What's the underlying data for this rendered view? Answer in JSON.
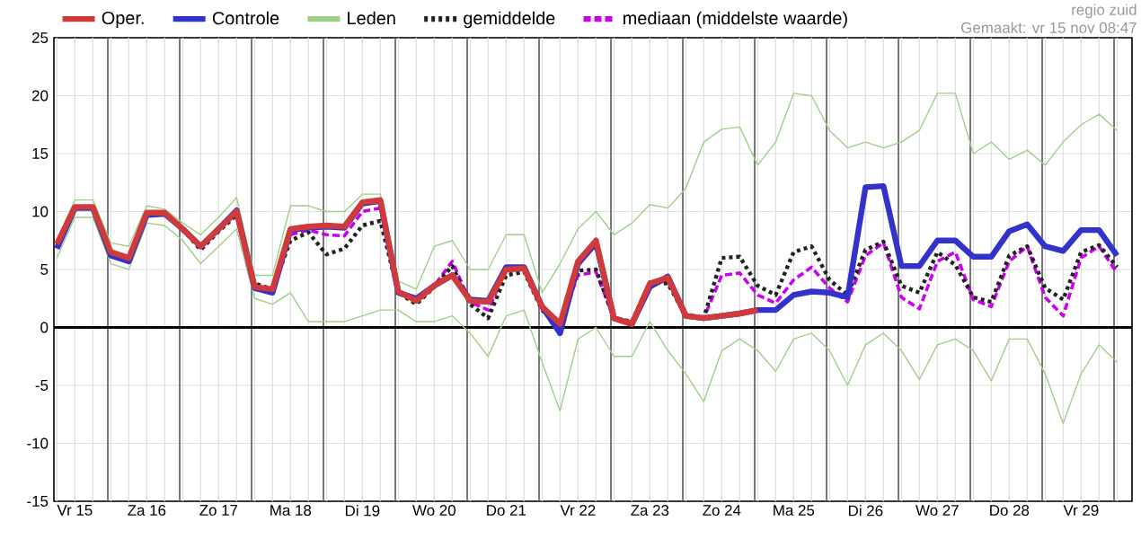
{
  "chart_data": {
    "type": "line",
    "annotations": [
      "regio zuid",
      "Gemaakt: vr 15 nov 08:47"
    ],
    "categories": [
      null,
      "Vr 15",
      null,
      null,
      null,
      "Za 16",
      null,
      null,
      null,
      "Zo 17",
      null,
      null,
      null,
      "Ma 18",
      null,
      null,
      null,
      "Di 19",
      null,
      null,
      null,
      "Wo 20",
      null,
      null,
      null,
      "Do 21",
      null,
      null,
      null,
      "Vr 22",
      null,
      null,
      null,
      "Za 23",
      null,
      null,
      null,
      "Zo 24",
      null,
      null,
      null,
      "Ma 25",
      null,
      null,
      null,
      "Di 26",
      null,
      null,
      null,
      "Wo 27",
      null,
      null,
      null,
      "Do 28",
      null,
      null,
      null,
      "Vr 29",
      null,
      null
    ],
    "ylim": [
      -15,
      25
    ],
    "yticks": [
      -15,
      -10,
      -5,
      0,
      5,
      10,
      15,
      20,
      25
    ],
    "grid": true,
    "legend": "top",
    "ref_lines": [
      {
        "axis": "y",
        "value": 0,
        "color": "#000000"
      }
    ],
    "series": [
      {
        "name": "Oper.",
        "color": "#d03a3a",
        "line_style": "solid",
        "values": [
          7.2,
          10.4,
          10.4,
          6.5,
          6.0,
          9.9,
          9.9,
          8.5,
          7.0,
          8.5,
          10.0,
          3.5,
          3.3,
          8.5,
          8.7,
          8.8,
          8.7,
          10.8,
          11.0,
          3.1,
          2.3,
          3.6,
          4.5,
          2.3,
          2.2,
          5.0,
          5.1,
          1.8,
          0.3,
          5.7,
          7.5,
          0.8,
          0.3,
          3.8,
          4.3,
          1.0,
          0.8,
          1.0,
          1.2,
          1.5,
          null,
          null,
          null,
          null,
          null,
          null,
          null,
          null,
          null,
          null,
          null,
          null,
          null,
          null,
          null,
          null,
          null,
          null,
          null,
          null
        ]
      },
      {
        "name": "Controle",
        "color": "#3333cc",
        "line_style": "solid",
        "values": [
          6.8,
          10.3,
          10.3,
          6.2,
          5.7,
          9.7,
          9.8,
          8.5,
          7.0,
          8.5,
          10.1,
          3.4,
          3.0,
          8.4,
          8.6,
          8.7,
          8.6,
          10.7,
          10.9,
          3.0,
          2.5,
          3.6,
          4.5,
          2.4,
          2.3,
          5.2,
          5.2,
          1.8,
          -0.5,
          5.5,
          7.3,
          0.8,
          0.3,
          3.5,
          4.4,
          1.0,
          0.8,
          1.0,
          1.2,
          1.5,
          1.5,
          2.8,
          3.1,
          3.0,
          2.6,
          12.1,
          12.2,
          5.3,
          5.3,
          7.5,
          7.5,
          6.1,
          6.1,
          8.3,
          8.9,
          7.0,
          6.6,
          8.4,
          8.4,
          6.2
        ]
      },
      {
        "name": "Leden",
        "color": "#9fd08a",
        "line_style": "solid",
        "values": [
          7.5,
          11.0,
          11.0,
          7.3,
          7.0,
          10.5,
          10.2,
          9.0,
          8.0,
          9.5,
          11.2,
          4.5,
          4.5,
          10.5,
          10.5,
          10.0,
          10.0,
          11.5,
          11.5,
          4.0,
          3.3,
          7.0,
          7.5,
          5.0,
          5.0,
          8.0,
          8.0,
          3.0,
          5.5,
          8.5,
          10.0,
          8.0,
          9.0,
          10.6,
          10.3,
          12.0,
          16.0,
          17.1,
          17.3,
          14.0,
          16.0,
          20.2,
          20.0,
          17.0,
          15.5,
          16.0,
          15.5,
          16.0,
          17.0,
          20.2,
          20.2,
          15.0,
          16.0,
          14.5,
          15.3,
          14.0,
          16.0,
          17.5,
          18.4,
          17.0
        ]
      },
      {
        "color": "#9fd08a",
        "line_style": "solid",
        "values": [
          6.0,
          9.5,
          9.5,
          5.5,
          5.0,
          9.0,
          8.8,
          7.5,
          5.5,
          7.0,
          8.5,
          2.5,
          2.0,
          3.0,
          0.5,
          0.5,
          0.5,
          1.0,
          1.5,
          1.5,
          0.5,
          0.5,
          1.0,
          -0.5,
          -2.5,
          1.0,
          1.5,
          -3.0,
          -7.2,
          -1.0,
          0.0,
          -2.5,
          -2.5,
          0.5,
          -2.0,
          -4.0,
          -6.4,
          -2.0,
          -1.0,
          -2.0,
          -3.8,
          -1.0,
          -0.5,
          -2.0,
          -5.0,
          -1.5,
          -0.5,
          -2.0,
          -4.5,
          -1.5,
          -1.0,
          -2.0,
          -4.6,
          -1.0,
          -1.0,
          -4.0,
          -8.3,
          -4.0,
          -1.5,
          -3.0
        ]
      },
      {
        "name": "gemiddelde",
        "color": "#222222",
        "line_style": "dotted",
        "values": [
          7.0,
          10.3,
          10.3,
          6.5,
          6.0,
          9.8,
          9.8,
          8.5,
          6.7,
          8.3,
          9.7,
          3.8,
          3.3,
          7.5,
          8.2,
          6.3,
          6.8,
          8.8,
          9.2,
          3.0,
          2.0,
          3.5,
          5.3,
          2.0,
          0.8,
          4.5,
          4.8,
          1.5,
          0.0,
          4.9,
          5.0,
          0.8,
          0.5,
          3.9,
          3.8,
          1.0,
          0.8,
          6.0,
          6.1,
          3.6,
          2.8,
          6.5,
          7.0,
          4.1,
          2.8,
          6.7,
          7.4,
          3.6,
          3.0,
          6.5,
          5.4,
          2.6,
          2.2,
          6.2,
          7.0,
          3.4,
          2.4,
          6.5,
          7.1,
          5.2
        ]
      },
      {
        "name": "mediaan (middelste waarde)",
        "color": "#cc00ee",
        "line_style": "dashed",
        "values": [
          null,
          null,
          null,
          null,
          null,
          null,
          null,
          null,
          null,
          null,
          null,
          null,
          null,
          8.0,
          8.4,
          8.0,
          7.9,
          10.0,
          10.3,
          3.0,
          2.2,
          3.6,
          5.7,
          2.2,
          1.5,
          5.0,
          5.0,
          1.6,
          0.2,
          4.5,
          4.8,
          0.8,
          0.5,
          3.8,
          4.0,
          1.0,
          0.8,
          4.5,
          4.7,
          2.8,
          2.1,
          4.1,
          5.2,
          3.4,
          2.2,
          6.2,
          7.3,
          2.6,
          1.6,
          5.7,
          6.5,
          2.4,
          1.8,
          5.7,
          7.0,
          2.6,
          1.0,
          6.0,
          7.0,
          4.7
        ]
      }
    ]
  }
}
